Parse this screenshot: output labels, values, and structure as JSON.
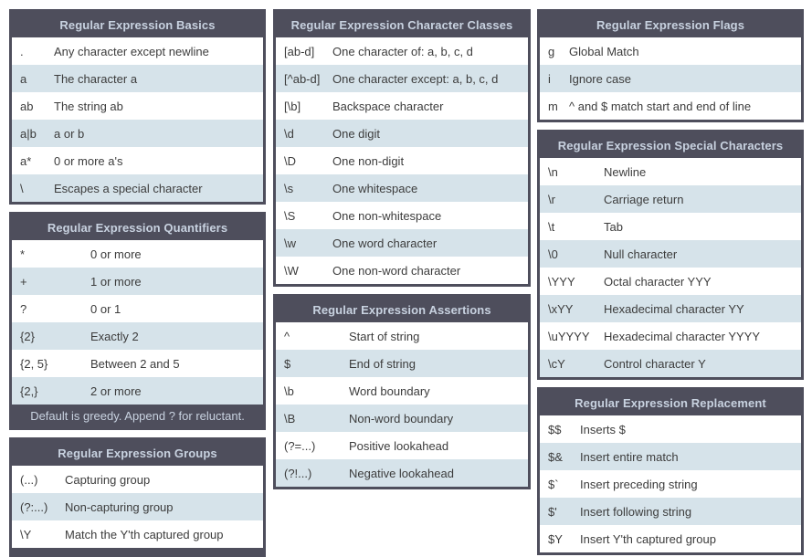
{
  "theme": {
    "background": "#ffffff",
    "table_border": "#4e4e5c",
    "header_bg": "#4e4e5c",
    "header_text": "#c8d2e0",
    "row_bg": "#ffffff",
    "row_alt_bg": "#d6e3ea",
    "row_text": "#3c3c3c"
  },
  "columns": [
    {
      "tables": [
        "basics",
        "quantifiers",
        "groups"
      ]
    },
    {
      "tables": [
        "character_classes",
        "assertions"
      ]
    },
    {
      "tables": [
        "flags",
        "special_characters",
        "replacement"
      ]
    }
  ],
  "tables": {
    "basics": {
      "title": "Regular Expression Basics",
      "term_col_width": 46,
      "rows": [
        {
          "term": ".",
          "desc": "Any character except newline"
        },
        {
          "term": "a",
          "desc": "The character a"
        },
        {
          "term": "ab",
          "desc": "The string ab"
        },
        {
          "term": "a|b",
          "desc": "a or b"
        },
        {
          "term": "a*",
          "desc": "0 or more a's"
        },
        {
          "term": "\\",
          "desc": "Escapes a special character"
        }
      ]
    },
    "quantifiers": {
      "title": "Regular Expression Quantifiers",
      "term_col_width": 86,
      "rows": [
        {
          "term": "*",
          "desc": "0 or more"
        },
        {
          "term": "+",
          "desc": "1 or more"
        },
        {
          "term": "?",
          "desc": "0 or 1"
        },
        {
          "term": "{2}",
          "desc": "Exactly 2"
        },
        {
          "term": "{2, 5}",
          "desc": "Between 2 and 5"
        },
        {
          "term": "{2,}",
          "desc": "2 or more"
        }
      ],
      "footer": "Default is greedy. Append ? for reluctant."
    },
    "groups": {
      "title": "Regular Expression Groups",
      "term_col_width": 58,
      "rows": [
        {
          "term": "(...)",
          "desc": "Capturing group"
        },
        {
          "term": "(?:...)",
          "desc": "Non-capturing group"
        },
        {
          "term": "\\Y",
          "desc": "Match the Y'th captured group"
        }
      ]
    },
    "character_classes": {
      "title": "Regular Expression Character Classes",
      "term_col_width": 62,
      "rows": [
        {
          "term": "[ab-d]",
          "desc": "One character of: a, b, c, d"
        },
        {
          "term": "[^ab-d]",
          "desc": "One character except: a, b, c, d"
        },
        {
          "term": "[\\b]",
          "desc": "Backspace character"
        },
        {
          "term": "\\d",
          "desc": "One digit"
        },
        {
          "term": "\\D",
          "desc": "One non-digit"
        },
        {
          "term": "\\s",
          "desc": "One whitespace"
        },
        {
          "term": "\\S",
          "desc": "One non-whitespace"
        },
        {
          "term": "\\w",
          "desc": "One word character"
        },
        {
          "term": "\\W",
          "desc": "One non-word character"
        }
      ]
    },
    "assertions": {
      "title": "Regular Expression Assertions",
      "term_col_width": 80,
      "rows": [
        {
          "term": "^",
          "desc": "Start of string"
        },
        {
          "term": "$",
          "desc": "End of string"
        },
        {
          "term": "\\b",
          "desc": "Word boundary"
        },
        {
          "term": "\\B",
          "desc": "Non-word boundary"
        },
        {
          "term": "(?=...)",
          "desc": "Positive lookahead"
        },
        {
          "term": "(?!...)",
          "desc": "Negative lookahead"
        }
      ]
    },
    "flags": {
      "title": "Regular Expression Flags",
      "term_col_width": 32,
      "rows": [
        {
          "term": "g",
          "desc": "Global Match"
        },
        {
          "term": "i",
          "desc": "Ignore case"
        },
        {
          "term": "m",
          "desc": "^ and $ match start and end of line"
        }
      ]
    },
    "special_characters": {
      "title": "Regular Expression Special Characters",
      "term_col_width": 70,
      "rows": [
        {
          "term": "\\n",
          "desc": "Newline"
        },
        {
          "term": "\\r",
          "desc": "Carriage return"
        },
        {
          "term": "\\t",
          "desc": "Tab"
        },
        {
          "term": "\\0",
          "desc": "Null character"
        },
        {
          "term": "\\YYY",
          "desc": "Octal character YYY"
        },
        {
          "term": "\\xYY",
          "desc": "Hexadecimal character YY"
        },
        {
          "term": "\\uYYYY",
          "desc": "Hexadecimal character YYYY"
        },
        {
          "term": "\\cY",
          "desc": "Control character Y"
        }
      ]
    },
    "replacement": {
      "title": "Regular Expression Replacement",
      "term_col_width": 44,
      "rows": [
        {
          "term": "$$",
          "desc": "Inserts $"
        },
        {
          "term": "$&",
          "desc": "Insert entire match"
        },
        {
          "term": "$`",
          "desc": "Insert preceding string"
        },
        {
          "term": "$'",
          "desc": "Insert following string"
        },
        {
          "term": "$Y",
          "desc": "Insert Y'th captured group"
        }
      ]
    }
  }
}
